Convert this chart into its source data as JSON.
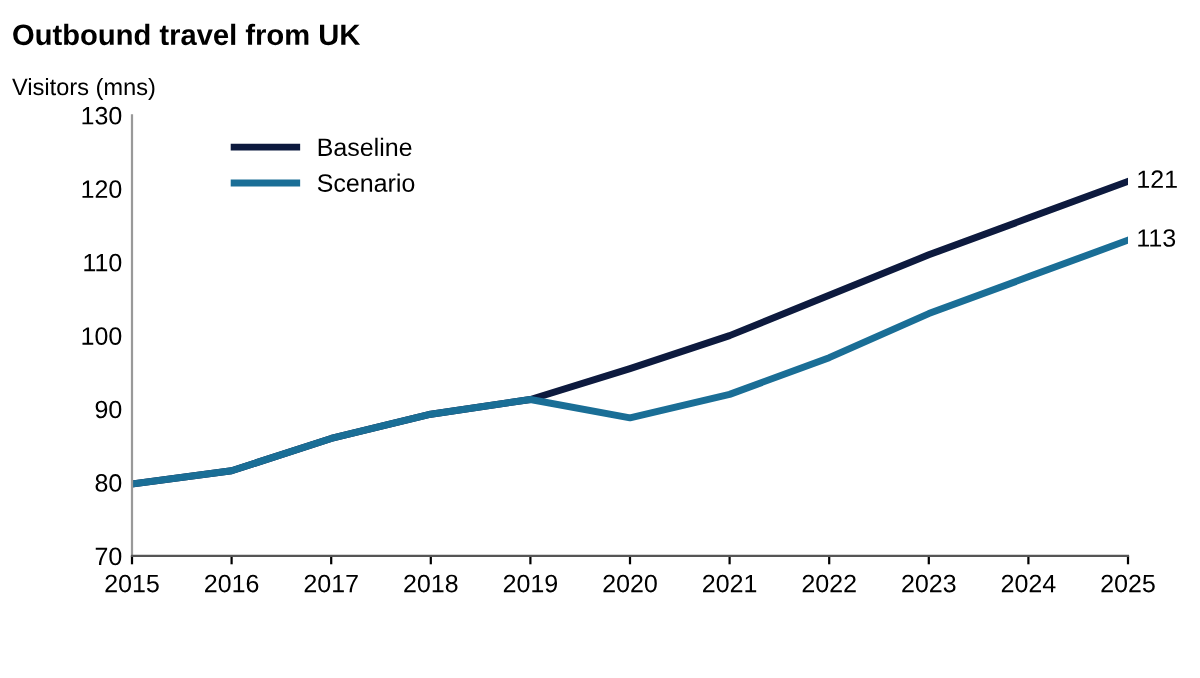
{
  "chart_data": {
    "type": "line",
    "title": "Outbound travel from UK",
    "ylabel": "Visitors (mns)",
    "x": [
      2015,
      2016,
      2017,
      2018,
      2019,
      2020,
      2021,
      2022,
      2023,
      2024,
      2025
    ],
    "series": [
      {
        "name": "Baseline",
        "color": "#0d1a3e",
        "values": [
          79.8,
          81.6,
          86,
          89.3,
          91.3,
          95.5,
          100,
          105.5,
          111,
          116,
          121
        ]
      },
      {
        "name": "Scenario",
        "color": "#1a6e96",
        "values": [
          79.8,
          81.6,
          86,
          89.3,
          91.3,
          88.8,
          92,
          97,
          103,
          108,
          113
        ]
      }
    ],
    "annotations": [
      {
        "text": "121",
        "x": 2025,
        "y": 121
      },
      {
        "text": "113",
        "x": 2025,
        "y": 113
      }
    ],
    "xlim": [
      2015,
      2025
    ],
    "xticks": [
      2015,
      2016,
      2017,
      2018,
      2019,
      2020,
      2021,
      2022,
      2023,
      2024,
      2025
    ],
    "ylim": [
      70,
      130
    ],
    "yticks": [
      70,
      80,
      90,
      100,
      110,
      120,
      130
    ],
    "grid": false,
    "legend": "top left",
    "marker": "none",
    "line_style": "solid"
  }
}
